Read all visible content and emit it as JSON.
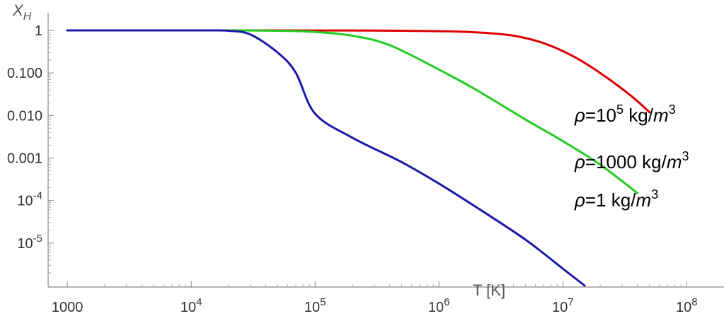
{
  "chart_data": {
    "type": "line",
    "title": "",
    "xlabel": "T [K]",
    "ylabel": "X_H",
    "xscale": "log",
    "yscale": "log",
    "xlim": [
      700,
      200000000
    ],
    "ylim": [
      1e-06,
      1
    ],
    "grid": false,
    "legend_placement": "right",
    "x_ticks": [
      {
        "value": 1000,
        "base": "1000",
        "exp": ""
      },
      {
        "value": 10000,
        "base": "10",
        "exp": "4"
      },
      {
        "value": 100000,
        "base": "10",
        "exp": "5"
      },
      {
        "value": 1000000,
        "base": "10",
        "exp": "6"
      },
      {
        "value": 10000000,
        "base": "10",
        "exp": "7"
      },
      {
        "value": 100000000,
        "base": "10",
        "exp": "8"
      }
    ],
    "y_ticks": [
      {
        "value": 1,
        "base": "1",
        "exp": ""
      },
      {
        "value": 0.1,
        "base": "0.100",
        "exp": ""
      },
      {
        "value": 0.01,
        "base": "0.010",
        "exp": ""
      },
      {
        "value": 0.001,
        "base": "0.001",
        "exp": ""
      },
      {
        "value": 0.0001,
        "base": "10",
        "exp": "-4"
      },
      {
        "value": 1e-05,
        "base": "10",
        "exp": "-5"
      }
    ],
    "series": [
      {
        "name": "ρ=10^5 kg/m^3",
        "legend_parts": {
          "rho": "ρ",
          "eq": "=10",
          "exp": "5",
          "unit": " kg/",
          "m": "m",
          "mexp": "3"
        },
        "color": "#dd0000",
        "x": [
          1000,
          10000,
          100000,
          300000,
          1000000,
          2000000,
          4000000,
          7000000,
          12000000,
          20000000,
          35000000,
          50000000
        ],
        "y": [
          1,
          1,
          0.998,
          0.99,
          0.96,
          0.9,
          0.75,
          0.5,
          0.25,
          0.1,
          0.03,
          0.012
        ]
      },
      {
        "name": "ρ=1000 kg/m^3",
        "legend_parts": {
          "rho": "ρ",
          "eq": "=1000",
          "exp": "",
          "unit": " kg/",
          "m": "m",
          "mexp": "3"
        },
        "color": "#22cc22",
        "x": [
          1000,
          10000,
          20000,
          50000,
          100000,
          200000,
          400000,
          1000000,
          2000000,
          5000000,
          10000000,
          20000000,
          40000000
        ],
        "y": [
          1,
          1,
          1,
          0.98,
          0.92,
          0.75,
          0.45,
          0.12,
          0.04,
          0.008,
          0.0025,
          0.0007,
          0.00015
        ]
      },
      {
        "name": "ρ=1 kg/m^3",
        "legend_parts": {
          "rho": "ρ",
          "eq": "=1",
          "exp": "",
          "unit": " kg/",
          "m": "m",
          "mexp": "3"
        },
        "color": "#1a1aaa",
        "x": [
          1000,
          10000,
          15000,
          20000,
          30000,
          50000,
          70000,
          100000,
          200000,
          500000,
          1000000,
          2000000,
          5000000,
          10000000,
          15000000
        ],
        "y": [
          1,
          1,
          1,
          0.98,
          0.8,
          0.3,
          0.1,
          0.011,
          0.003,
          0.0008,
          0.00025,
          7e-05,
          1.2e-05,
          2.5e-06,
          1e-06
        ]
      }
    ]
  }
}
